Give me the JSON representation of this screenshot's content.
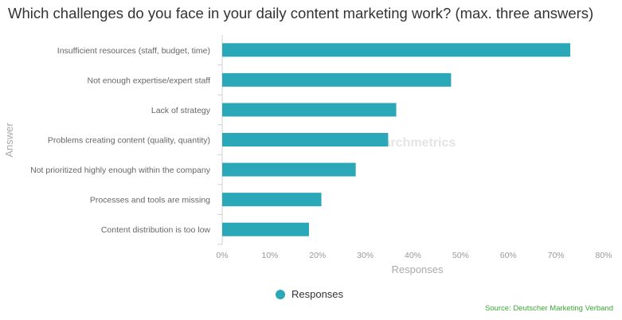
{
  "chart_data": {
    "type": "bar",
    "orientation": "horizontal",
    "title": "Which challenges do you face in your daily content marketing work? (max. three answers)",
    "xlabel": "Responses",
    "ylabel": "Answer",
    "categories": [
      "Insufficient resources (staff, budget, time)",
      "Not enough expertise/expert staff",
      "Lack of strategy",
      "Problems creating content (quality, quantity)",
      "Not prioritized highly enough within the company",
      "Processes and tools are missing",
      "Content distribution is too low"
    ],
    "series": [
      {
        "name": "Responses",
        "values": [
          73,
          48,
          36.5,
          34.8,
          28,
          20.8,
          18.2
        ]
      }
    ],
    "xlim": [
      0,
      80
    ],
    "xticks": [
      "0%",
      "10%",
      "20%",
      "30%",
      "40%",
      "50%",
      "60%",
      "70%",
      "80%"
    ],
    "grid": false,
    "legend_position": "bottom",
    "bar_color": "#2aa8b7",
    "source": "Source: Deutscher Marketing Verband",
    "watermark": "searchmetrics"
  }
}
